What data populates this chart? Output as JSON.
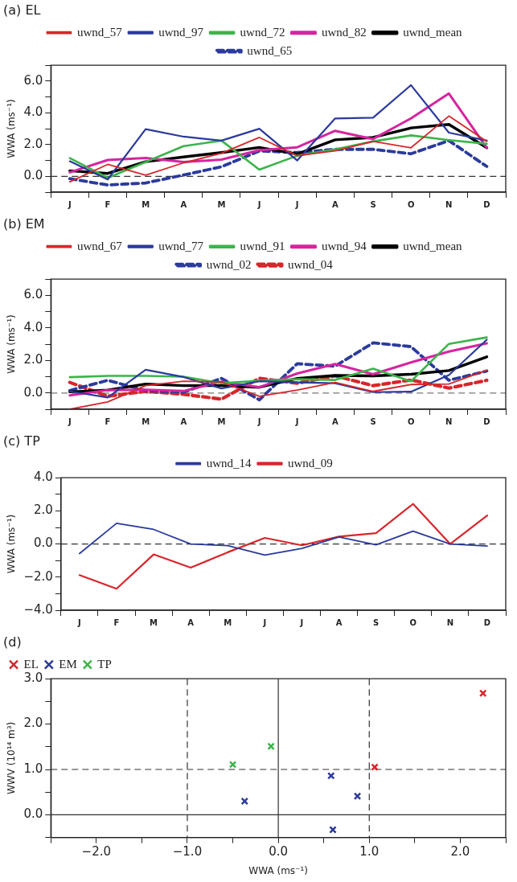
{
  "chart_data": [
    {
      "type": "line",
      "title": "(a) EL",
      "ylabel": "WWA (ms⁻¹)",
      "categories": [
        "J",
        "F",
        "M",
        "A",
        "M",
        "J",
        "J",
        "A",
        "S",
        "O",
        "N",
        "D"
      ],
      "ylim": [
        -1,
        7
      ],
      "yticks": [
        {
          "value": -1,
          "label": null
        },
        {
          "value": 0,
          "label": "0.0"
        },
        {
          "value": 1,
          "label": null
        },
        {
          "value": 2,
          "label": "2.0"
        },
        {
          "value": 3,
          "label": null
        },
        {
          "value": 4,
          "label": "4.0"
        },
        {
          "value": 5,
          "label": null
        },
        {
          "value": 6,
          "label": "6.0"
        },
        {
          "value": 7,
          "label": null
        }
      ],
      "grid": false,
      "legend": "top",
      "ref_lines": [
        {
          "axis": "y",
          "value": 0,
          "color": "#333333",
          "line_style": "dashed"
        }
      ],
      "series": [
        {
          "name": "uwnd_57",
          "color": "#d7262b",
          "values": [
            -0.35,
            0.75,
            0.07,
            0.85,
            1.45,
            2.45,
            1.3,
            1.6,
            2.2,
            1.8,
            3.8,
            2.2
          ]
        },
        {
          "name": "uwnd_97",
          "color": "#2b3a9c",
          "values": [
            0.95,
            -0.2,
            2.97,
            2.5,
            2.25,
            3.0,
            1.0,
            3.65,
            3.7,
            5.75,
            2.75,
            2.25
          ]
        },
        {
          "name": "uwnd_72",
          "color": "#3cb44b",
          "values": [
            1.15,
            -0.1,
            0.9,
            1.9,
            2.25,
            0.42,
            1.3,
            1.7,
            2.2,
            2.58,
            2.28,
            2.05
          ]
        },
        {
          "name": "uwnd_82",
          "color": "#d6249f",
          "values": [
            0.25,
            1.03,
            1.15,
            0.9,
            1.05,
            1.65,
            1.83,
            2.87,
            2.35,
            3.65,
            5.22,
            1.8
          ]
        },
        {
          "name": "uwnd_mean",
          "color": "#000000",
          "values": [
            0.35,
            0.18,
            0.92,
            1.22,
            1.5,
            1.82,
            1.4,
            2.3,
            2.45,
            3.05,
            3.27,
            1.8
          ]
        },
        {
          "name": "uwnd_65",
          "color": "#2b3a9c",
          "line_style": "dashed",
          "values": [
            -0.15,
            -0.55,
            -0.42,
            0.08,
            0.6,
            1.6,
            1.5,
            1.7,
            1.7,
            1.42,
            2.25,
            0.62
          ]
        }
      ]
    },
    {
      "type": "line",
      "title": "(b) EM",
      "ylabel": "WWA (ms⁻¹)",
      "categories": [
        "J",
        "F",
        "M",
        "A",
        "M",
        "J",
        "J",
        "A",
        "S",
        "O",
        "N",
        "D"
      ],
      "ylim": [
        -1,
        7
      ],
      "yticks": [
        {
          "value": -1,
          "label": null
        },
        {
          "value": 0,
          "label": "0.0"
        },
        {
          "value": 1,
          "label": null
        },
        {
          "value": 2,
          "label": "2.0"
        },
        {
          "value": 3,
          "label": null
        },
        {
          "value": 4,
          "label": "4.0"
        },
        {
          "value": 5,
          "label": null
        },
        {
          "value": 6,
          "label": "6.0"
        },
        {
          "value": 7,
          "label": null
        }
      ],
      "grid": false,
      "legend": "top",
      "ref_lines": [
        {
          "axis": "y",
          "value": 0,
          "color": "#777777",
          "line_style": "dashed"
        }
      ],
      "series": [
        {
          "name": "uwnd_67",
          "color": "#d7262b",
          "values": [
            -1.0,
            -0.55,
            0.45,
            0.72,
            0.68,
            -0.2,
            0.18,
            0.65,
            0.1,
            0.52,
            0.55,
            1.4
          ]
        },
        {
          "name": "uwnd_77",
          "color": "#2b3a9c",
          "values": [
            0.1,
            -0.28,
            1.43,
            0.98,
            0.28,
            0.72,
            0.65,
            0.6,
            0.05,
            0.08,
            1.1,
            3.28
          ]
        },
        {
          "name": "uwnd_91",
          "color": "#3cb44b",
          "values": [
            0.97,
            1.05,
            1.05,
            1.0,
            0.6,
            0.75,
            0.85,
            0.8,
            1.5,
            0.72,
            3.02,
            3.42
          ]
        },
        {
          "name": "uwnd_94",
          "color": "#d6249f",
          "values": [
            -0.15,
            0.18,
            0.2,
            0.12,
            0.7,
            0.35,
            1.2,
            1.78,
            1.15,
            1.88,
            2.55,
            3.05
          ]
        },
        {
          "name": "uwnd_mean",
          "color": "#000000",
          "values": [
            0.07,
            0.18,
            0.55,
            0.45,
            0.45,
            0.35,
            0.9,
            1.08,
            1.05,
            1.15,
            1.38,
            2.22
          ]
        },
        {
          "name": "uwnd_02",
          "color": "#2b3a9c",
          "line_style": "dashed",
          "values": [
            0.15,
            0.78,
            0.15,
            0.05,
            0.9,
            -0.42,
            1.8,
            1.65,
            3.08,
            2.85,
            0.78,
            1.35
          ]
        },
        {
          "name": "uwnd_04",
          "color": "#d7262b",
          "line_style": "dashed",
          "values": [
            0.65,
            -0.2,
            0.1,
            -0.08,
            -0.38,
            0.9,
            0.6,
            1.05,
            0.45,
            0.8,
            0.3,
            0.78
          ]
        }
      ]
    },
    {
      "type": "line",
      "title": "(c) TP",
      "ylabel": "WWA (ms⁻¹)",
      "categories": [
        "J",
        "F",
        "M",
        "A",
        "M",
        "J",
        "J",
        "A",
        "S",
        "O",
        "N",
        "D"
      ],
      "ylim": [
        -4,
        4
      ],
      "yticks": [
        {
          "value": -4,
          "label": "−4.0"
        },
        {
          "value": -3,
          "label": null
        },
        {
          "value": -2,
          "label": "−2.0"
        },
        {
          "value": -1,
          "label": null
        },
        {
          "value": 0,
          "label": "0.0"
        },
        {
          "value": 1,
          "label": null
        },
        {
          "value": 2,
          "label": "2.0"
        },
        {
          "value": 3,
          "label": null
        },
        {
          "value": 4,
          "label": "4.0"
        }
      ],
      "grid": false,
      "legend": "top",
      "ref_lines": [
        {
          "axis": "y",
          "value": 0,
          "color": "#333333",
          "line_style": "dashed"
        }
      ],
      "series": [
        {
          "name": "uwnd_14",
          "color": "#2b3a9c",
          "values": [
            -0.58,
            1.25,
            0.88,
            0.0,
            -0.1,
            -0.67,
            -0.27,
            0.42,
            -0.05,
            0.78,
            0.0,
            -0.12
          ]
        },
        {
          "name": "uwnd_09",
          "color": "#d7262b",
          "values": [
            -1.88,
            -2.7,
            -0.63,
            -1.43,
            -0.5,
            0.37,
            -0.08,
            0.45,
            0.65,
            2.42,
            0.0,
            1.72
          ]
        }
      ]
    },
    {
      "type": "scatter",
      "title": "(d)",
      "xlabel": "WWA (ms⁻¹)",
      "ylabel": "WWV (10¹⁴ m³)",
      "xlim": [
        -2.5,
        2.5
      ],
      "xticks": [
        {
          "value": -2.5,
          "label": null
        },
        {
          "value": -2,
          "label": "−2.0"
        },
        {
          "value": -1.5,
          "label": null
        },
        {
          "value": -1,
          "label": "−1.0"
        },
        {
          "value": -0.5,
          "label": null
        },
        {
          "value": 0,
          "label": "0.0"
        },
        {
          "value": 0.5,
          "label": null
        },
        {
          "value": 1,
          "label": "1.0"
        },
        {
          "value": 1.5,
          "label": null
        },
        {
          "value": 2,
          "label": "2.0"
        },
        {
          "value": 2.5,
          "label": null
        }
      ],
      "ylim": [
        -0.5,
        3
      ],
      "yticks": [
        {
          "value": -0.5,
          "label": null
        },
        {
          "value": 0,
          "label": "0.0"
        },
        {
          "value": 0.5,
          "label": null
        },
        {
          "value": 1,
          "label": "1.0"
        },
        {
          "value": 1.5,
          "label": null
        },
        {
          "value": 2,
          "label": "2.0"
        },
        {
          "value": 2.5,
          "label": null
        },
        {
          "value": 3,
          "label": "3.0"
        }
      ],
      "grid": false,
      "legend": "top left",
      "marker": "cross",
      "ref_lines": [
        {
          "axis": "x",
          "value": -1,
          "color": "#333333",
          "line_style": "dashed"
        },
        {
          "axis": "x",
          "value": 1,
          "color": "#333333",
          "line_style": "dashed"
        },
        {
          "axis": "x",
          "value": 0,
          "color": "#333333",
          "line_style": "solid"
        },
        {
          "axis": "y",
          "value": 1,
          "color": "#333333",
          "line_style": "dashed"
        },
        {
          "axis": "y",
          "value": 0,
          "color": "#333333",
          "line_style": "solid"
        }
      ],
      "series": [
        {
          "name": "EL",
          "color": "#d7262b",
          "x": [
            1.06,
            2.25
          ],
          "values": [
            1.05,
            2.68
          ]
        },
        {
          "name": "EM",
          "color": "#2b3a9c",
          "x": [
            0.58,
            -0.37,
            0.87,
            0.6
          ],
          "values": [
            0.86,
            0.3,
            0.41,
            -0.33
          ]
        },
        {
          "name": "TP",
          "color": "#3cb44b",
          "x": [
            -0.5,
            -0.08
          ],
          "values": [
            1.11,
            1.51
          ]
        }
      ]
    }
  ]
}
